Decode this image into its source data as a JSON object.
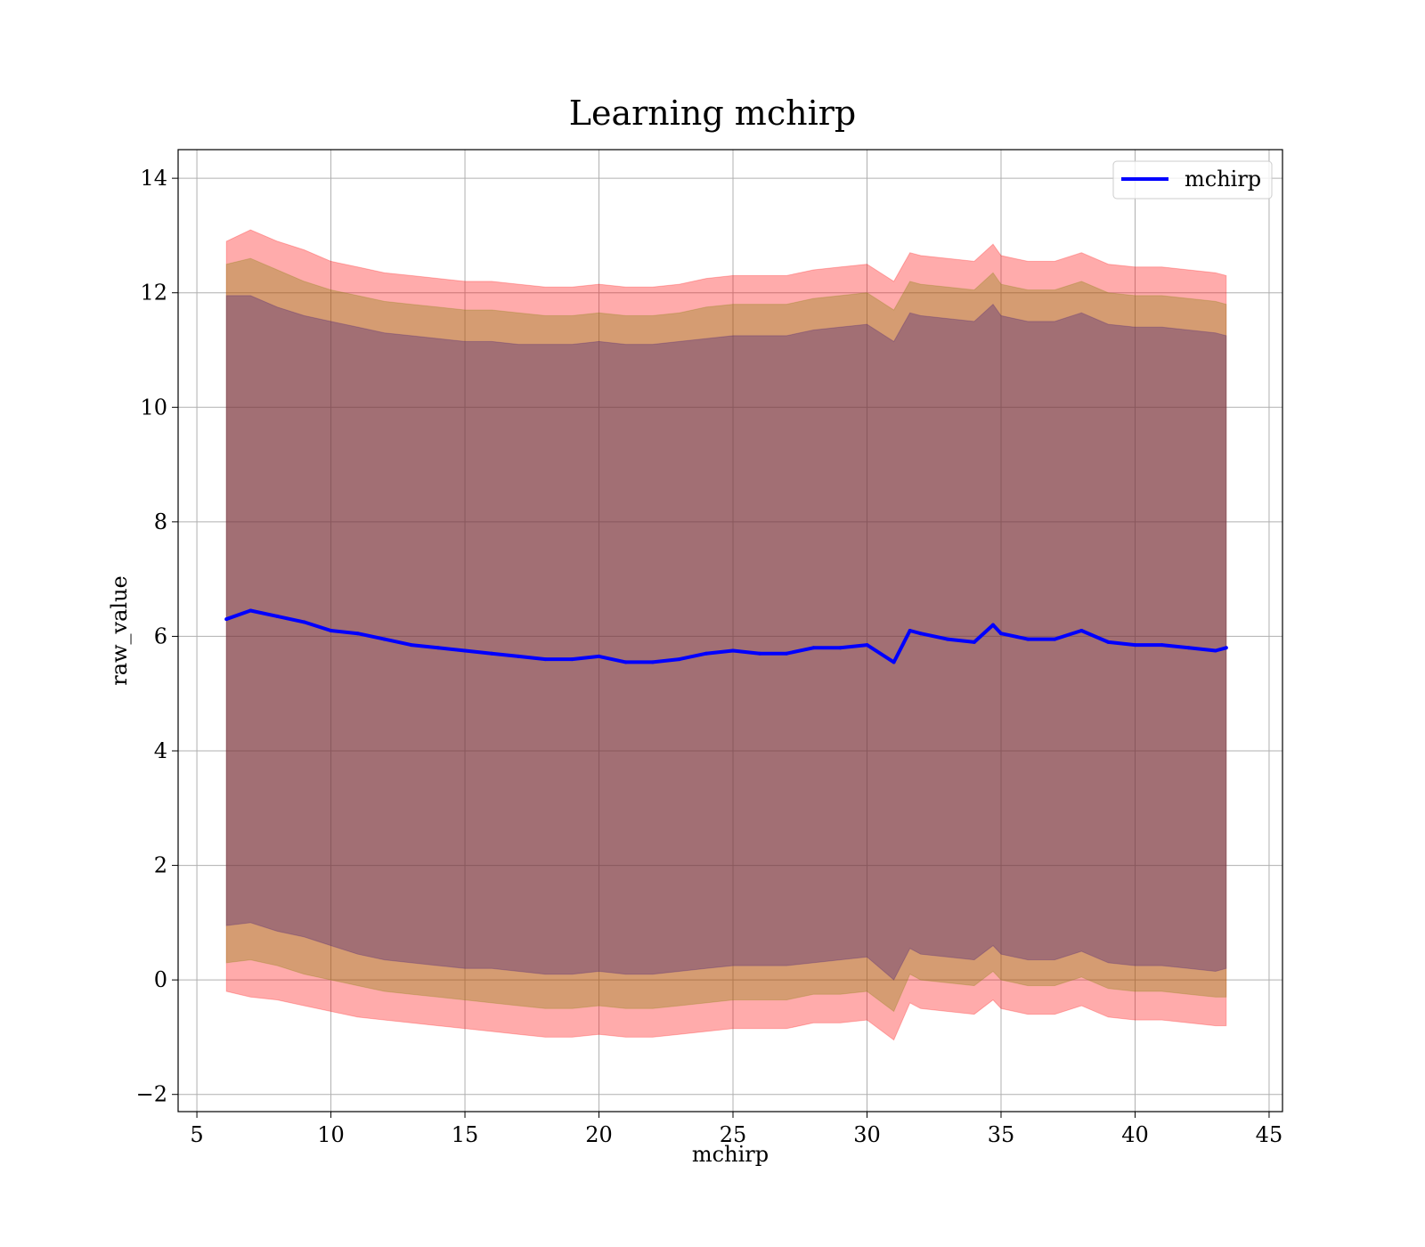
{
  "chart_data": {
    "type": "line",
    "title": "Learning mchirp",
    "xlabel": "mchirp",
    "ylabel": "raw_value",
    "xlim": [
      4.3,
      45.5
    ],
    "ylim": [
      -2.3,
      14.5
    ],
    "xticks": [
      5,
      10,
      15,
      20,
      25,
      30,
      35,
      40,
      45
    ],
    "yticks": [
      -2,
      0,
      2,
      4,
      6,
      8,
      10,
      12,
      14
    ],
    "xtick_labels": [
      "5",
      "10",
      "15",
      "20",
      "25",
      "30",
      "35",
      "40",
      "45"
    ],
    "ytick_labels": [
      "−2",
      "0",
      "2",
      "4",
      "6",
      "8",
      "10",
      "12",
      "14"
    ],
    "grid": true,
    "legend_position": "top-right",
    "x": [
      6.1,
      7,
      8,
      9,
      10,
      11,
      12,
      13,
      14,
      15,
      16,
      17,
      18,
      19,
      20,
      21,
      22,
      23,
      24,
      25,
      26,
      27,
      28,
      29,
      30,
      31,
      31.6,
      32,
      33,
      34,
      34.7,
      35,
      36,
      37,
      38,
      39,
      40,
      41,
      42,
      43,
      43.4
    ],
    "series": [
      {
        "name": "mchirp",
        "color": "#0000ff",
        "values": [
          6.3,
          6.45,
          6.35,
          6.25,
          6.1,
          6.05,
          5.95,
          5.85,
          5.8,
          5.75,
          5.7,
          5.65,
          5.6,
          5.6,
          5.65,
          5.55,
          5.55,
          5.6,
          5.7,
          5.75,
          5.7,
          5.7,
          5.8,
          5.8,
          5.85,
          5.55,
          6.1,
          6.05,
          5.95,
          5.9,
          6.2,
          6.05,
          5.95,
          5.95,
          6.1,
          5.9,
          5.85,
          5.85,
          5.8,
          5.75,
          5.8
        ]
      }
    ],
    "bands": [
      {
        "color": "#ff0000",
        "opacity": 0.33,
        "upper": [
          12.9,
          13.1,
          12.9,
          12.75,
          12.55,
          12.45,
          12.35,
          12.3,
          12.25,
          12.2,
          12.2,
          12.15,
          12.1,
          12.1,
          12.15,
          12.1,
          12.1,
          12.15,
          12.25,
          12.3,
          12.3,
          12.3,
          12.4,
          12.45,
          12.5,
          12.2,
          12.7,
          12.65,
          12.6,
          12.55,
          12.85,
          12.65,
          12.55,
          12.55,
          12.7,
          12.5,
          12.45,
          12.45,
          12.4,
          12.35,
          12.3
        ],
        "lower": [
          -0.2,
          -0.3,
          -0.35,
          -0.45,
          -0.55,
          -0.65,
          -0.7,
          -0.75,
          -0.8,
          -0.85,
          -0.9,
          -0.95,
          -1.0,
          -1.0,
          -0.95,
          -1.0,
          -1.0,
          -0.95,
          -0.9,
          -0.85,
          -0.85,
          -0.85,
          -0.75,
          -0.75,
          -0.7,
          -1.05,
          -0.4,
          -0.5,
          -0.55,
          -0.6,
          -0.35,
          -0.5,
          -0.6,
          -0.6,
          -0.45,
          -0.65,
          -0.7,
          -0.7,
          -0.75,
          -0.8,
          -0.8
        ]
      },
      {
        "color": "#808000",
        "opacity": 0.33,
        "upper": [
          12.5,
          12.6,
          12.4,
          12.2,
          12.05,
          11.95,
          11.85,
          11.8,
          11.75,
          11.7,
          11.7,
          11.65,
          11.6,
          11.6,
          11.65,
          11.6,
          11.6,
          11.65,
          11.75,
          11.8,
          11.8,
          11.8,
          11.9,
          11.95,
          12.0,
          11.7,
          12.2,
          12.15,
          12.1,
          12.05,
          12.35,
          12.15,
          12.05,
          12.05,
          12.2,
          12.0,
          11.95,
          11.95,
          11.9,
          11.85,
          11.8
        ],
        "lower": [
          0.3,
          0.35,
          0.25,
          0.1,
          0.0,
          -0.1,
          -0.2,
          -0.25,
          -0.3,
          -0.35,
          -0.4,
          -0.45,
          -0.5,
          -0.5,
          -0.45,
          -0.5,
          -0.5,
          -0.45,
          -0.4,
          -0.35,
          -0.35,
          -0.35,
          -0.25,
          -0.25,
          -0.2,
          -0.55,
          0.1,
          0.0,
          -0.05,
          -0.1,
          0.15,
          0.0,
          -0.1,
          -0.1,
          0.05,
          -0.15,
          -0.2,
          -0.2,
          -0.25,
          -0.3,
          -0.3
        ]
      },
      {
        "color": "#3b1578",
        "opacity": 0.33,
        "upper": [
          11.95,
          11.95,
          11.75,
          11.6,
          11.5,
          11.4,
          11.3,
          11.25,
          11.2,
          11.15,
          11.15,
          11.1,
          11.1,
          11.1,
          11.15,
          11.1,
          11.1,
          11.15,
          11.2,
          11.25,
          11.25,
          11.25,
          11.35,
          11.4,
          11.45,
          11.15,
          11.65,
          11.6,
          11.55,
          11.5,
          11.8,
          11.6,
          11.5,
          11.5,
          11.65,
          11.45,
          11.4,
          11.4,
          11.35,
          11.3,
          11.25
        ],
        "lower": [
          0.95,
          1.0,
          0.85,
          0.75,
          0.6,
          0.45,
          0.35,
          0.3,
          0.25,
          0.2,
          0.2,
          0.15,
          0.1,
          0.1,
          0.15,
          0.1,
          0.1,
          0.15,
          0.2,
          0.25,
          0.25,
          0.25,
          0.3,
          0.35,
          0.4,
          0.0,
          0.55,
          0.45,
          0.4,
          0.35,
          0.6,
          0.45,
          0.35,
          0.35,
          0.5,
          0.3,
          0.25,
          0.25,
          0.2,
          0.15,
          0.2
        ]
      }
    ]
  }
}
